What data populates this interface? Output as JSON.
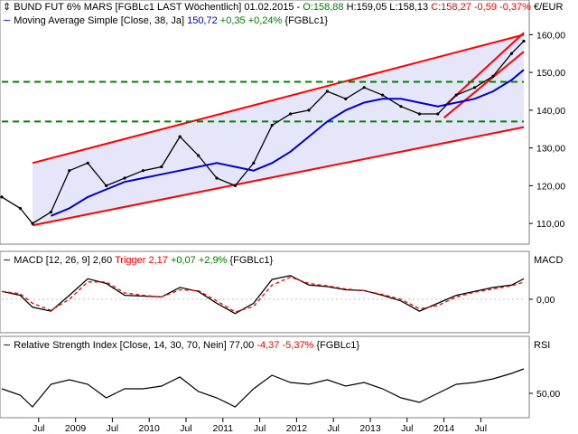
{
  "header": {
    "instrument": "BUND FUT 6% MARS [FGBLc1 LAST Wöchentlich] 01.02.2015 -",
    "open": "O:158,88",
    "high": "H:159,05",
    "low": "L:158,13",
    "close": "C:158,27",
    "change": "-0,59",
    "change_pct": "-0,37%",
    "unit": "€/EUR"
  },
  "ma_legend": {
    "label": "Moving Average Simple [Close, 38, Ja]",
    "value": "150,72",
    "change": "+0,35",
    "change_pct": "+0,24%",
    "ticker": "{FGBLc1}"
  },
  "macd_legend": {
    "label": "MACD [12, 26, 9] 2,60",
    "trigger": "Trigger 2,17",
    "change": "+0,07",
    "change_pct": "+2,9%",
    "ticker": "{FGBLc1}",
    "axis_title": "MACD"
  },
  "rsi_legend": {
    "label": "Relative Strength Index [Close, 14, 30, 70, Nein] 77,00",
    "change": "-4,37",
    "change_pct": "-5,37%",
    "ticker": "{FGBLc1}",
    "axis_title": "RSI"
  },
  "colors": {
    "channel": "#ff0000",
    "support": "#008000",
    "ma": "#0000cc",
    "fill": "#e6e6fa",
    "positive": "#008000",
    "negative": "#ff0000",
    "trigger": "#ff0000"
  },
  "chart_data": [
    {
      "type": "line",
      "panel": "price",
      "ylim": [
        105,
        162
      ],
      "yticks": [
        "160,00",
        "150,00",
        "140,00",
        "130,00",
        "120,00",
        "110,00"
      ],
      "ytick_values": [
        160,
        150,
        140,
        130,
        120,
        110
      ],
      "xtick_labels": [
        "Jul",
        "2009",
        "Jul",
        "2010",
        "Jul",
        "2011",
        "Jul",
        "2012",
        "Jul",
        "2013",
        "Jul",
        "2014",
        "Jul"
      ],
      "xtick_dates": [
        "2008-07",
        "2009-01",
        "2009-07",
        "2010-01",
        "2010-07",
        "2011-01",
        "2011-07",
        "2012-01",
        "2012-07",
        "2013-01",
        "2013-07",
        "2014-01",
        "2014-07"
      ],
      "x": [
        "2008-01",
        "2008-04",
        "2008-06",
        "2008-09",
        "2008-12",
        "2009-03",
        "2009-06",
        "2009-09",
        "2009-12",
        "2010-03",
        "2010-06",
        "2010-09",
        "2010-12",
        "2011-03",
        "2011-06",
        "2011-09",
        "2011-12",
        "2012-03",
        "2012-06",
        "2012-09",
        "2012-12",
        "2013-03",
        "2013-06",
        "2013-09",
        "2013-12",
        "2014-03",
        "2014-06",
        "2014-09",
        "2014-12",
        "2015-02"
      ],
      "series": [
        {
          "name": "BUND FUT 6% MARS",
          "values": [
            117,
            114,
            110,
            113,
            124,
            126,
            120,
            122,
            124,
            125,
            133,
            128,
            122,
            120,
            126,
            136,
            139,
            140,
            145,
            143,
            146,
            144,
            141,
            139,
            139,
            144,
            146,
            149,
            155,
            158.3
          ]
        },
        {
          "name": "Moving Average Simple [Close, 38, Ja]",
          "values": [
            null,
            null,
            null,
            112,
            114,
            117,
            119,
            121,
            122,
            123,
            124,
            125,
            126,
            125,
            124,
            126,
            129,
            133,
            137,
            140,
            142,
            143,
            143,
            142,
            141,
            142,
            143,
            145,
            148,
            150.7
          ]
        }
      ],
      "horizontal_lines": [
        147.5,
        137
      ]
    },
    {
      "type": "line",
      "panel": "macd",
      "ylim": [
        -4,
        4
      ],
      "yticks": [
        "0,00"
      ],
      "ytick_values": [
        0
      ],
      "series": [
        {
          "name": "MACD [12, 26, 9]",
          "values": [
            1.0,
            0.5,
            -1.0,
            -1.5,
            0.5,
            2.6,
            2.0,
            0.5,
            0.4,
            0.3,
            1.5,
            1.0,
            -0.5,
            -1.8,
            -0.5,
            2.5,
            3.0,
            1.8,
            1.6,
            1.2,
            1.1,
            0.5,
            -0.2,
            -1.5,
            -0.5,
            0.5,
            1.0,
            1.5,
            1.8,
            2.6
          ]
        },
        {
          "name": "Trigger",
          "values": [
            1.0,
            0.7,
            -0.5,
            -1.4,
            0.0,
            2.2,
            2.2,
            0.8,
            0.5,
            0.3,
            1.2,
            1.1,
            -0.2,
            -1.6,
            -0.9,
            1.8,
            2.8,
            2.0,
            1.7,
            1.3,
            1.1,
            0.6,
            0.0,
            -1.2,
            -0.8,
            0.3,
            0.9,
            1.3,
            1.7,
            2.17
          ]
        }
      ]
    },
    {
      "type": "line",
      "panel": "rsi",
      "ylim": [
        25,
        95
      ],
      "yticks": [
        "50,00"
      ],
      "ytick_values": [
        50
      ],
      "series": [
        {
          "name": "Relative Strength Index [Close, 14, 30, 70, Nein]",
          "values": [
            55,
            48,
            35,
            60,
            65,
            60,
            45,
            55,
            55,
            58,
            68,
            52,
            45,
            35,
            55,
            70,
            62,
            60,
            65,
            58,
            62,
            55,
            45,
            40,
            50,
            60,
            62,
            66,
            72,
            77
          ]
        }
      ]
    }
  ]
}
